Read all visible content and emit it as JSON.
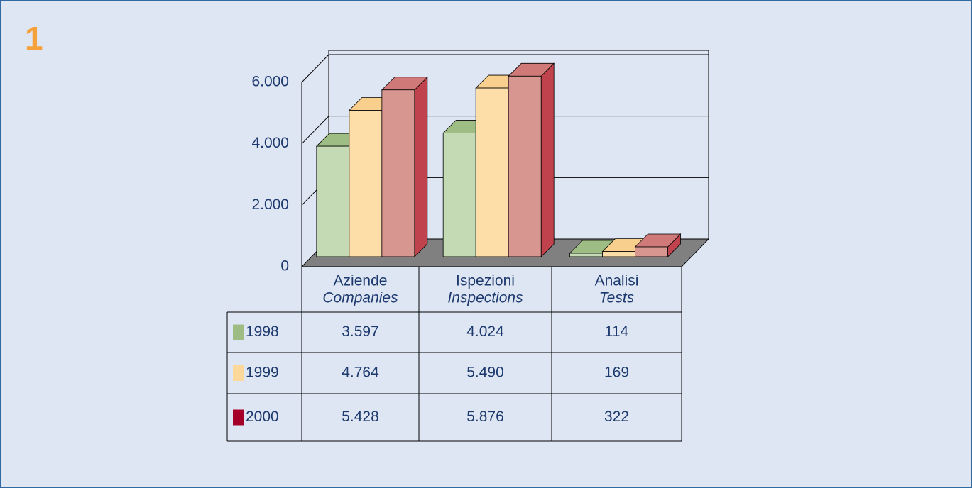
{
  "chart_data": {
    "type": "bar3d",
    "label": "1",
    "categories": [
      "Aziende",
      "Ispezioni",
      "Analisi"
    ],
    "categories_en": [
      "Companies",
      "Inspections",
      "Tests"
    ],
    "series": [
      {
        "name": "1998",
        "color": "#9dbd84",
        "bar_color": "#c4dab4",
        "top_color": "#9dbd84",
        "side_color": "#7fa566",
        "values": [
          3597,
          4024,
          114
        ],
        "value_labels": [
          "3.597",
          "4.024",
          "114"
        ]
      },
      {
        "name": "1999",
        "color": "#fcd89a",
        "bar_color": "#fddea8",
        "top_color": "#f8cf8c",
        "side_color": "#e9b36a",
        "values": [
          4764,
          5490,
          169
        ],
        "value_labels": [
          "4.764",
          "5.490",
          "169"
        ]
      },
      {
        "name": "2000",
        "color": "#a5002a",
        "bar_color": "#d89690",
        "top_color": "#cf7a78",
        "side_color": "#c0424c",
        "values": [
          5428,
          5876,
          322
        ],
        "value_labels": [
          "5.428",
          "5.876",
          "322"
        ]
      }
    ],
    "ylim": [
      0,
      6000
    ],
    "yticks": [
      0,
      {
        "value": 2000,
        "label": "2.000"
      },
      {
        "value": 4000,
        "label": "4.000"
      },
      {
        "value": 6000,
        "label": "6.000"
      }
    ],
    "grid": true
  }
}
